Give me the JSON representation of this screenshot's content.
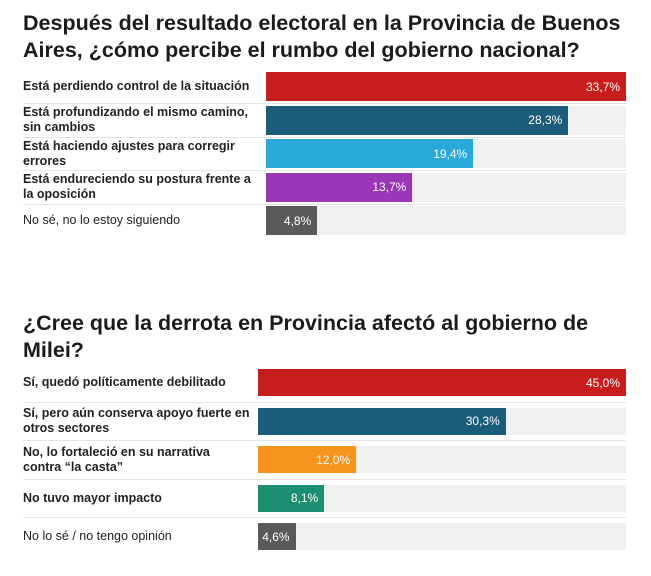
{
  "chart_data": [
    {
      "type": "bar",
      "orientation": "horizontal",
      "title": "Después del resultado electoral en la Provincia de Buenos Aires, ¿cómo percibe el rumbo del gobierno nacional?",
      "categories": [
        "Está perdiendo control de la situación",
        "Está profundizando el mismo camino, sin cambios",
        "Está haciendo ajustes para corregir errores",
        "Está endureciendo su postura frente a la oposición",
        "No sé, no lo estoy siguiendo"
      ],
      "values": [
        33.7,
        28.3,
        19.4,
        13.7,
        4.8
      ],
      "value_labels": [
        "33,7%",
        "28,3%",
        "19,4%",
        "13,7%",
        "4,8%"
      ],
      "colors": [
        "#c81d1d",
        "#1b5c7b",
        "#29a8da",
        "#9b36b7",
        "#5a5a5a"
      ],
      "bold": [
        true,
        true,
        true,
        true,
        false
      ],
      "xlim": [
        0,
        33.7
      ]
    },
    {
      "type": "bar",
      "orientation": "horizontal",
      "title": "¿Cree que la derrota en Provincia afectó al gobierno de Milei?",
      "categories": [
        "Sí, quedó políticamente debilitado",
        "Sí, pero aún conserva apoyo fuerte en otros sectores",
        "No, lo fortaleció en su narrativa contra “la casta”",
        "No tuvo mayor impacto",
        "No lo sé / no tengo opinión"
      ],
      "values": [
        45.0,
        30.3,
        12.0,
        8.1,
        4.6
      ],
      "value_labels": [
        "45,0%",
        "30,3%",
        "12,0%",
        "8,1%",
        "4,6%"
      ],
      "colors": [
        "#c81d1d",
        "#1b5c7b",
        "#f7941d",
        "#1b8f70",
        "#5a5a5a"
      ],
      "bold": [
        true,
        true,
        true,
        true,
        false
      ],
      "xlim": [
        0,
        45.0
      ]
    }
  ]
}
